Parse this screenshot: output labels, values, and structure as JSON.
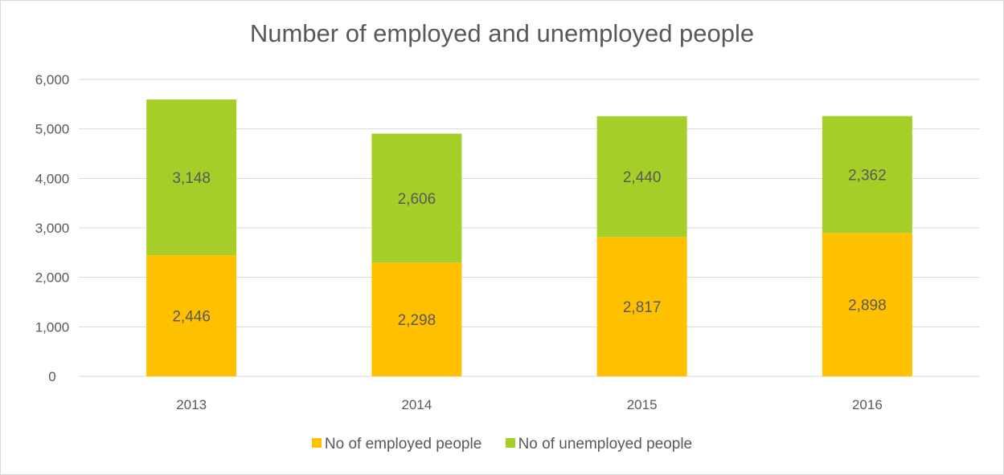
{
  "colors": {
    "employed": "#FFC000",
    "unemployed": "#A6CE28",
    "gridline": "#D9D9D9",
    "text": "#595959"
  },
  "chart_data": {
    "type": "bar",
    "stacked": true,
    "title": "Number of employed and unemployed people",
    "xlabel": "",
    "ylabel": "",
    "categories": [
      "2013",
      "2014",
      "2015",
      "2016"
    ],
    "ylim": [
      0,
      6000
    ],
    "yticks": [
      0,
      1000,
      2000,
      3000,
      4000,
      5000,
      6000
    ],
    "ytick_labels": [
      "0",
      "1,000",
      "2,000",
      "3,000",
      "4,000",
      "5,000",
      "6,000"
    ],
    "grid": true,
    "legend_position": "bottom",
    "series": [
      {
        "name": "No of employed people",
        "values": [
          2446,
          2298,
          2817,
          2898
        ],
        "labels": [
          "2,446",
          "2,298",
          "2,817",
          "2,898"
        ],
        "color": "#FFC000"
      },
      {
        "name": "No of unemployed people",
        "values": [
          3148,
          2606,
          2440,
          2362
        ],
        "labels": [
          "3,148",
          "2,606",
          "2,440",
          "2,362"
        ],
        "color": "#A6CE28"
      }
    ]
  }
}
